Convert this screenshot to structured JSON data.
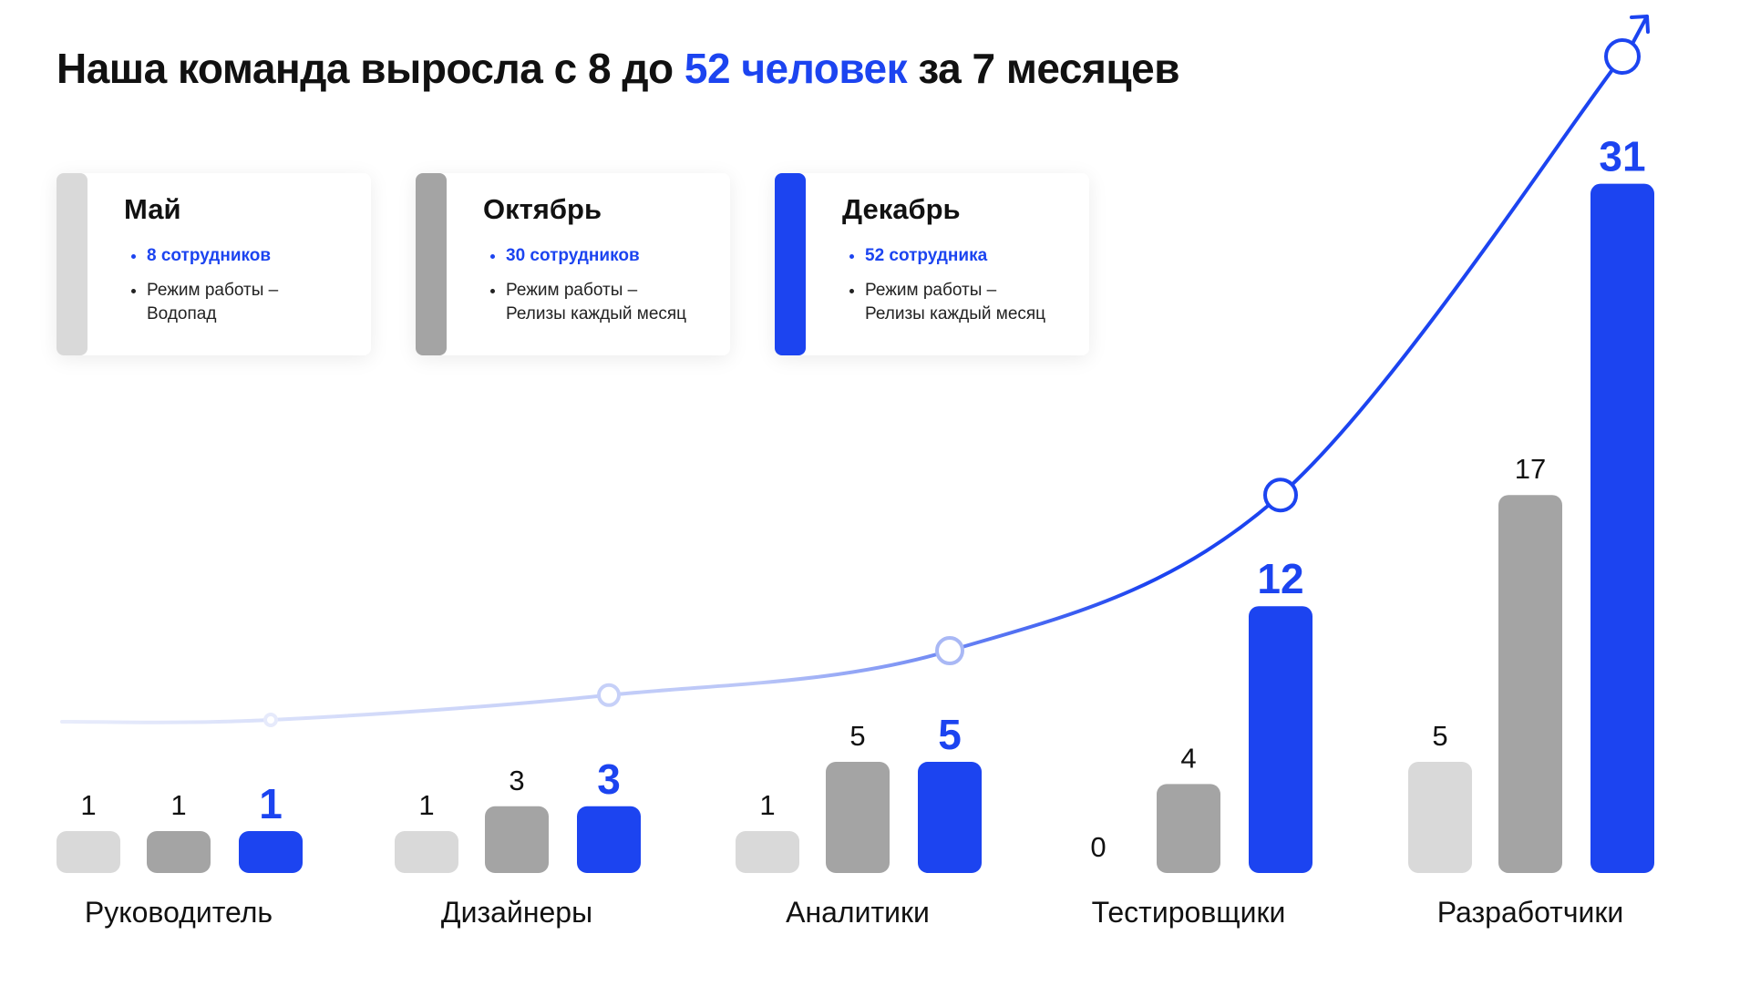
{
  "title": {
    "part1": "Наша команда выросла с 8 до ",
    "highlight": "52 человек",
    "part2": " за 7 месяцев"
  },
  "colors": {
    "may": "#d9d9d9",
    "october": "#a4a4a4",
    "december": "#1c44f0",
    "text": "#111111",
    "curve_start": "#e8ecfb"
  },
  "legend_cards": [
    {
      "month": "Май",
      "employees": "8 сотрудников",
      "mode_label": "Режим работы –",
      "mode_value": "Водопад",
      "color": "#d9d9d9"
    },
    {
      "month": "Октябрь",
      "employees": "30 сотрудников",
      "mode_label": "Режим работы –",
      "mode_value": "Релизы каждый месяц",
      "color": "#a4a4a4"
    },
    {
      "month": "Декабрь",
      "employees": "52 сотрудника",
      "mode_label": "Режим работы –",
      "mode_value": "Релизы каждый месяц",
      "color": "#1c44f0"
    }
  ],
  "chart_data": {
    "type": "bar",
    "title": "Наша команда выросла с 8 до 52 человек за 7 месяцев",
    "categories": [
      "Руководитель",
      "Дизайнеры",
      "Аналитики",
      "Тестировщики",
      "Разработчики"
    ],
    "series": [
      {
        "name": "Май",
        "values": [
          1,
          1,
          1,
          0,
          5
        ],
        "color": "#d9d9d9"
      },
      {
        "name": "Октябрь",
        "values": [
          1,
          3,
          5,
          4,
          17
        ],
        "color": "#a4a4a4"
      },
      {
        "name": "Декабрь",
        "values": [
          1,
          3,
          5,
          12,
          31
        ],
        "color": "#1c44f0"
      }
    ],
    "ylim": [
      0,
      31
    ],
    "grid": false,
    "legend_position": "top-left",
    "trend_icon": "male-symbol-arrow-icon"
  }
}
